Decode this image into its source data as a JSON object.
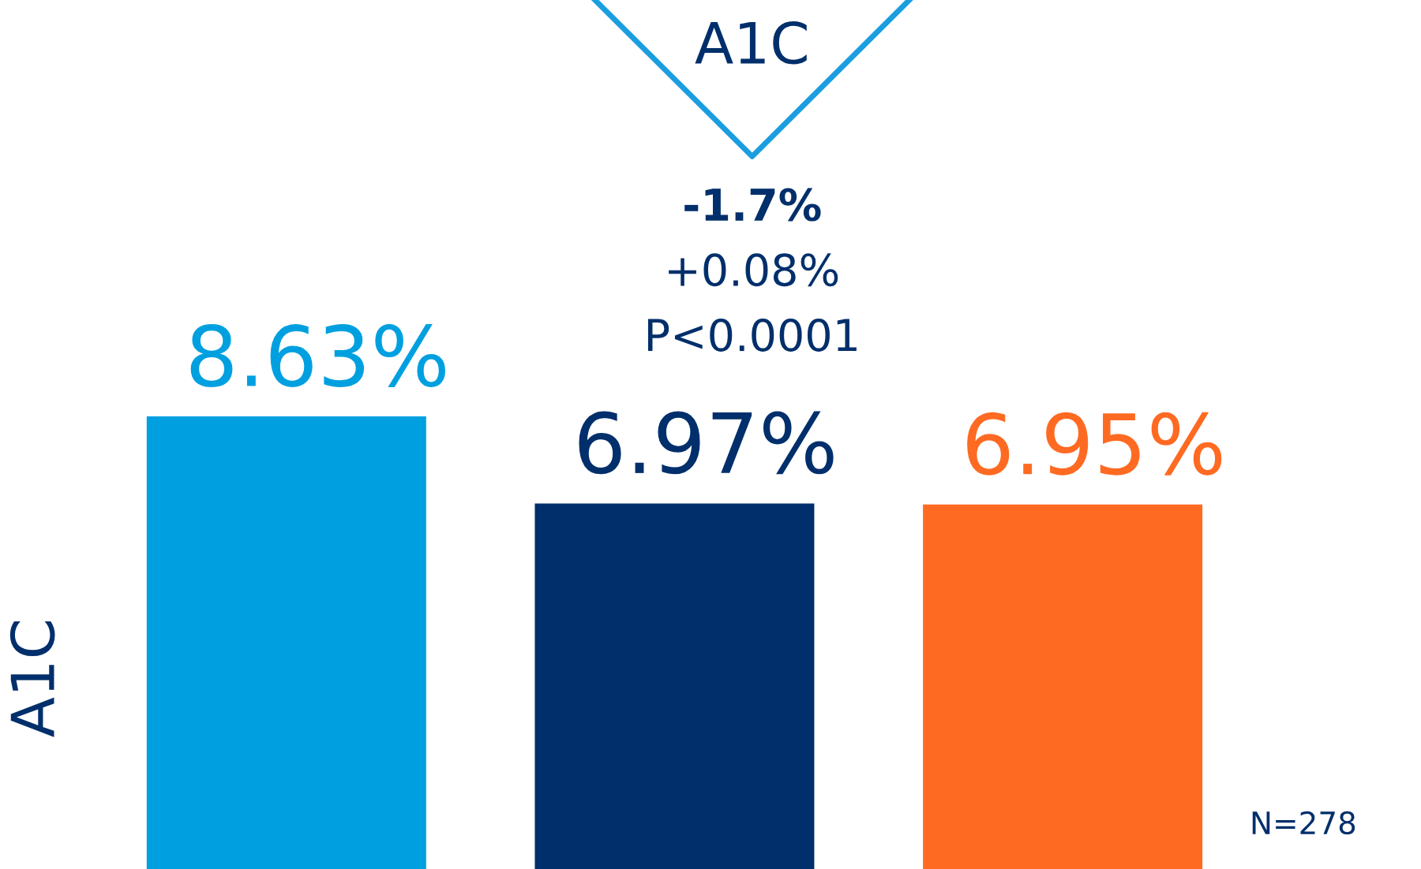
{
  "chart_data": {
    "type": "bar",
    "ylabel": "A1C",
    "categories": [
      null,
      null,
      null
    ],
    "values": [
      8.63,
      6.97,
      6.95
    ],
    "colors": [
      "#00a0e0",
      "#002f6b",
      "#ff6a22"
    ],
    "value_labels": [
      "8.63%",
      "6.97%",
      "6.95%"
    ],
    "grid": false,
    "legend": false,
    "annotations": [
      "A1C",
      "-1.7%",
      "+0.08%",
      "P<0.0001",
      "N=278"
    ]
  }
}
